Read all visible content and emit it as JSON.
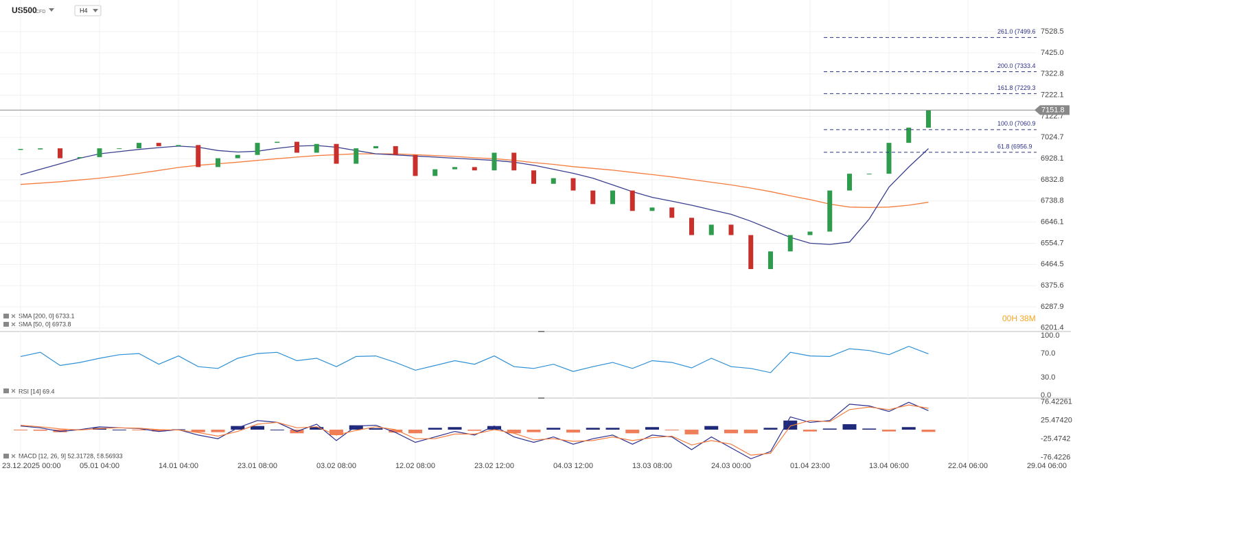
{
  "header": {
    "symbol": "US500",
    "instrument": "CFD",
    "timeframe": "H4"
  },
  "chart_data": [
    {
      "type": "candlestick",
      "values": [
        6970,
        6975,
        6930,
        6935,
        6975,
        6975,
        7000,
        6985,
        6990,
        6890,
        6930,
        6945,
        7000,
        7005,
        6955,
        6995,
        6905,
        6975,
        6985,
        6945,
        6850,
        6880,
        6890,
        6875,
        6955,
        6875,
        6815,
        6840,
        6785,
        6725,
        6785,
        6695,
        6710,
        6665,
        6590,
        6635,
        6590,
        6445,
        6520,
        6590,
        6605,
        6785,
        6860,
        6860,
        7000,
        7070,
        7150,
        null,
        null,
        null,
        null,
        null,
        null
      ],
      "up_color": "#2e9c4c",
      "down_color": "#c9302c",
      "series": [
        {
          "name": "SMA [200, 0] 6733.1",
          "color": "#f47c3c",
          "values": [
            6812,
            6818,
            6824,
            6832,
            6840,
            6850,
            6862,
            6875,
            6888,
            6898,
            6905,
            6912,
            6920,
            6928,
            6935,
            6942,
            6946,
            6950,
            6950,
            6950,
            6946,
            6942,
            6938,
            6932,
            6928,
            6920,
            6910,
            6902,
            6892,
            6884,
            6876,
            6866,
            6856,
            6846,
            6834,
            6822,
            6810,
            6796,
            6780,
            6762,
            6745,
            6725,
            6712,
            6710,
            6712,
            6720,
            6733.1,
            null,
            null,
            null,
            null,
            null,
            null
          ]
        },
        {
          "name": "SMA [50, 0] 6973.8",
          "color": "#3a3f8f",
          "values": [
            6855,
            6880,
            6905,
            6930,
            6950,
            6960,
            6970,
            6978,
            6985,
            6980,
            6965,
            6958,
            6962,
            6975,
            6985,
            6988,
            6980,
            6965,
            6950,
            6945,
            6940,
            6935,
            6930,
            6925,
            6920,
            6912,
            6898,
            6880,
            6862,
            6840,
            6810,
            6780,
            6755,
            6738,
            6720,
            6700,
            6680,
            6650,
            6615,
            6580,
            6555,
            6550,
            6560,
            6660,
            6800,
            6890,
            6973.8,
            null,
            null,
            null,
            null,
            null,
            null
          ]
        }
      ],
      "ylim": [
        6187,
        7686
      ],
      "log_scale": true,
      "grid": true,
      "yticks": [
        7528.5,
        {
          "value": 7425,
          "label": "7425.0"
        },
        7322.8,
        7222.1,
        7122.7,
        7024.7,
        6928.1,
        6832.8,
        6738.8,
        6646.1,
        6554.7,
        6464.5,
        6375.6,
        6287.9,
        6201.4
      ],
      "last_price": 7151.8,
      "fib_levels": [
        {
          "label": "261.0 (7499.6",
          "value": 7499.6
        },
        {
          "label": "200.0 (7333.4",
          "value": 7333.4
        },
        {
          "label": "161.8 (7229.3",
          "value": 7229.3
        },
        {
          "label": "100.0 (7060.9",
          "value": 7060.9
        },
        {
          "label": "61.8 (6956.9",
          "value": 6956.9
        }
      ],
      "timer": "00H 38M"
    },
    {
      "type": "line",
      "series": [
        {
          "name": "RSI [14] 69.4",
          "color": "#2d8fd6",
          "values": [
            65,
            72,
            50,
            55,
            62,
            68,
            70,
            52,
            66,
            48,
            45,
            62,
            70,
            72,
            58,
            62,
            48,
            65,
            66,
            55,
            42,
            50,
            58,
            52,
            66,
            48,
            45,
            52,
            40,
            48,
            55,
            45,
            58,
            55,
            46,
            62,
            48,
            45,
            38,
            72,
            66,
            65,
            78,
            75,
            68,
            82,
            69.4,
            null,
            null,
            null,
            null,
            null,
            null
          ]
        }
      ],
      "ylim": [
        -4.6,
        103.4
      ],
      "grid": false,
      "yticks": [
        {
          "value": 100,
          "label": "100.0"
        },
        {
          "value": 70,
          "label": "70.0"
        },
        {
          "value": 30,
          "label": "30.0"
        },
        {
          "value": 0,
          "label": "0.0"
        }
      ]
    },
    {
      "type": "macd",
      "title": "MACD [12, 26, 9] 52.31728, 58.56933",
      "series": [
        {
          "color": "#2b2f8f",
          "values": [
            10,
            5,
            -5,
            0,
            8,
            5,
            3,
            -5,
            0,
            -15,
            -25,
            5,
            25,
            20,
            -5,
            15,
            -30,
            10,
            12,
            -8,
            -35,
            -20,
            -5,
            -15,
            10,
            -20,
            -35,
            -20,
            -40,
            -25,
            -15,
            -40,
            -15,
            -20,
            -55,
            -20,
            -50,
            -80,
            -60,
            35,
            20,
            25,
            70,
            65,
            50,
            75,
            52.31728,
            null,
            null,
            null,
            null,
            null,
            null
          ]
        },
        {
          "color": "#f47c3c",
          "values": [
            12,
            8,
            2,
            -1,
            3,
            5,
            4,
            0,
            -1,
            -8,
            -18,
            -5,
            15,
            20,
            5,
            8,
            -15,
            -2,
            8,
            0,
            -25,
            -25,
            -12,
            -12,
            0,
            -10,
            -28,
            -25,
            -32,
            -30,
            -20,
            -30,
            -22,
            -18,
            -42,
            -30,
            -40,
            -70,
            -65,
            10,
            25,
            22,
            55,
            62,
            55,
            68,
            58.56933,
            null,
            null,
            null,
            null,
            null,
            null
          ]
        }
      ],
      "histogram": {
        "up_color": "#1f2a7a",
        "down_color": "#ef7f5a",
        "values": [
          -2,
          -3,
          -7,
          1,
          5,
          0,
          -1,
          -5,
          1,
          -7,
          -7,
          10,
          10,
          0,
          -10,
          7,
          -15,
          12,
          4,
          -8,
          -10,
          5,
          7,
          -3,
          10,
          -10,
          -7,
          5,
          -8,
          5,
          5,
          -10,
          7,
          -2,
          -13,
          10,
          -10,
          -10,
          5,
          25,
          -5,
          3,
          15,
          3,
          -5,
          7,
          -6.26,
          null,
          null,
          null,
          null,
          null,
          null
        ]
      },
      "ylim": [
        -86.8,
        83
      ],
      "grid": false,
      "yticks": [
        76.42261,
        {
          "value": 25.4742,
          "label": "25.47420"
        },
        -25.4742,
        -76.4226
      ],
      "categories": [
        "23.12.2025 00:00",
        null,
        null,
        null,
        "05.01 04:00",
        null,
        null,
        null,
        "14.01 04:00",
        null,
        null,
        null,
        "23.01 08:00",
        null,
        null,
        null,
        "03.02 08:00",
        null,
        null,
        null,
        "12.02 08:00",
        null,
        null,
        null,
        "23.02 12:00",
        null,
        null,
        null,
        "04.03 12:00",
        null,
        null,
        null,
        "13.03 08:00",
        null,
        null,
        null,
        "24.03 00:00",
        null,
        null,
        null,
        "01.04 23:00",
        null,
        null,
        null,
        "13.04 06:00",
        null,
        null,
        null,
        "22.04 06:00",
        null,
        null,
        null,
        "29.04 06:00"
      ]
    }
  ]
}
